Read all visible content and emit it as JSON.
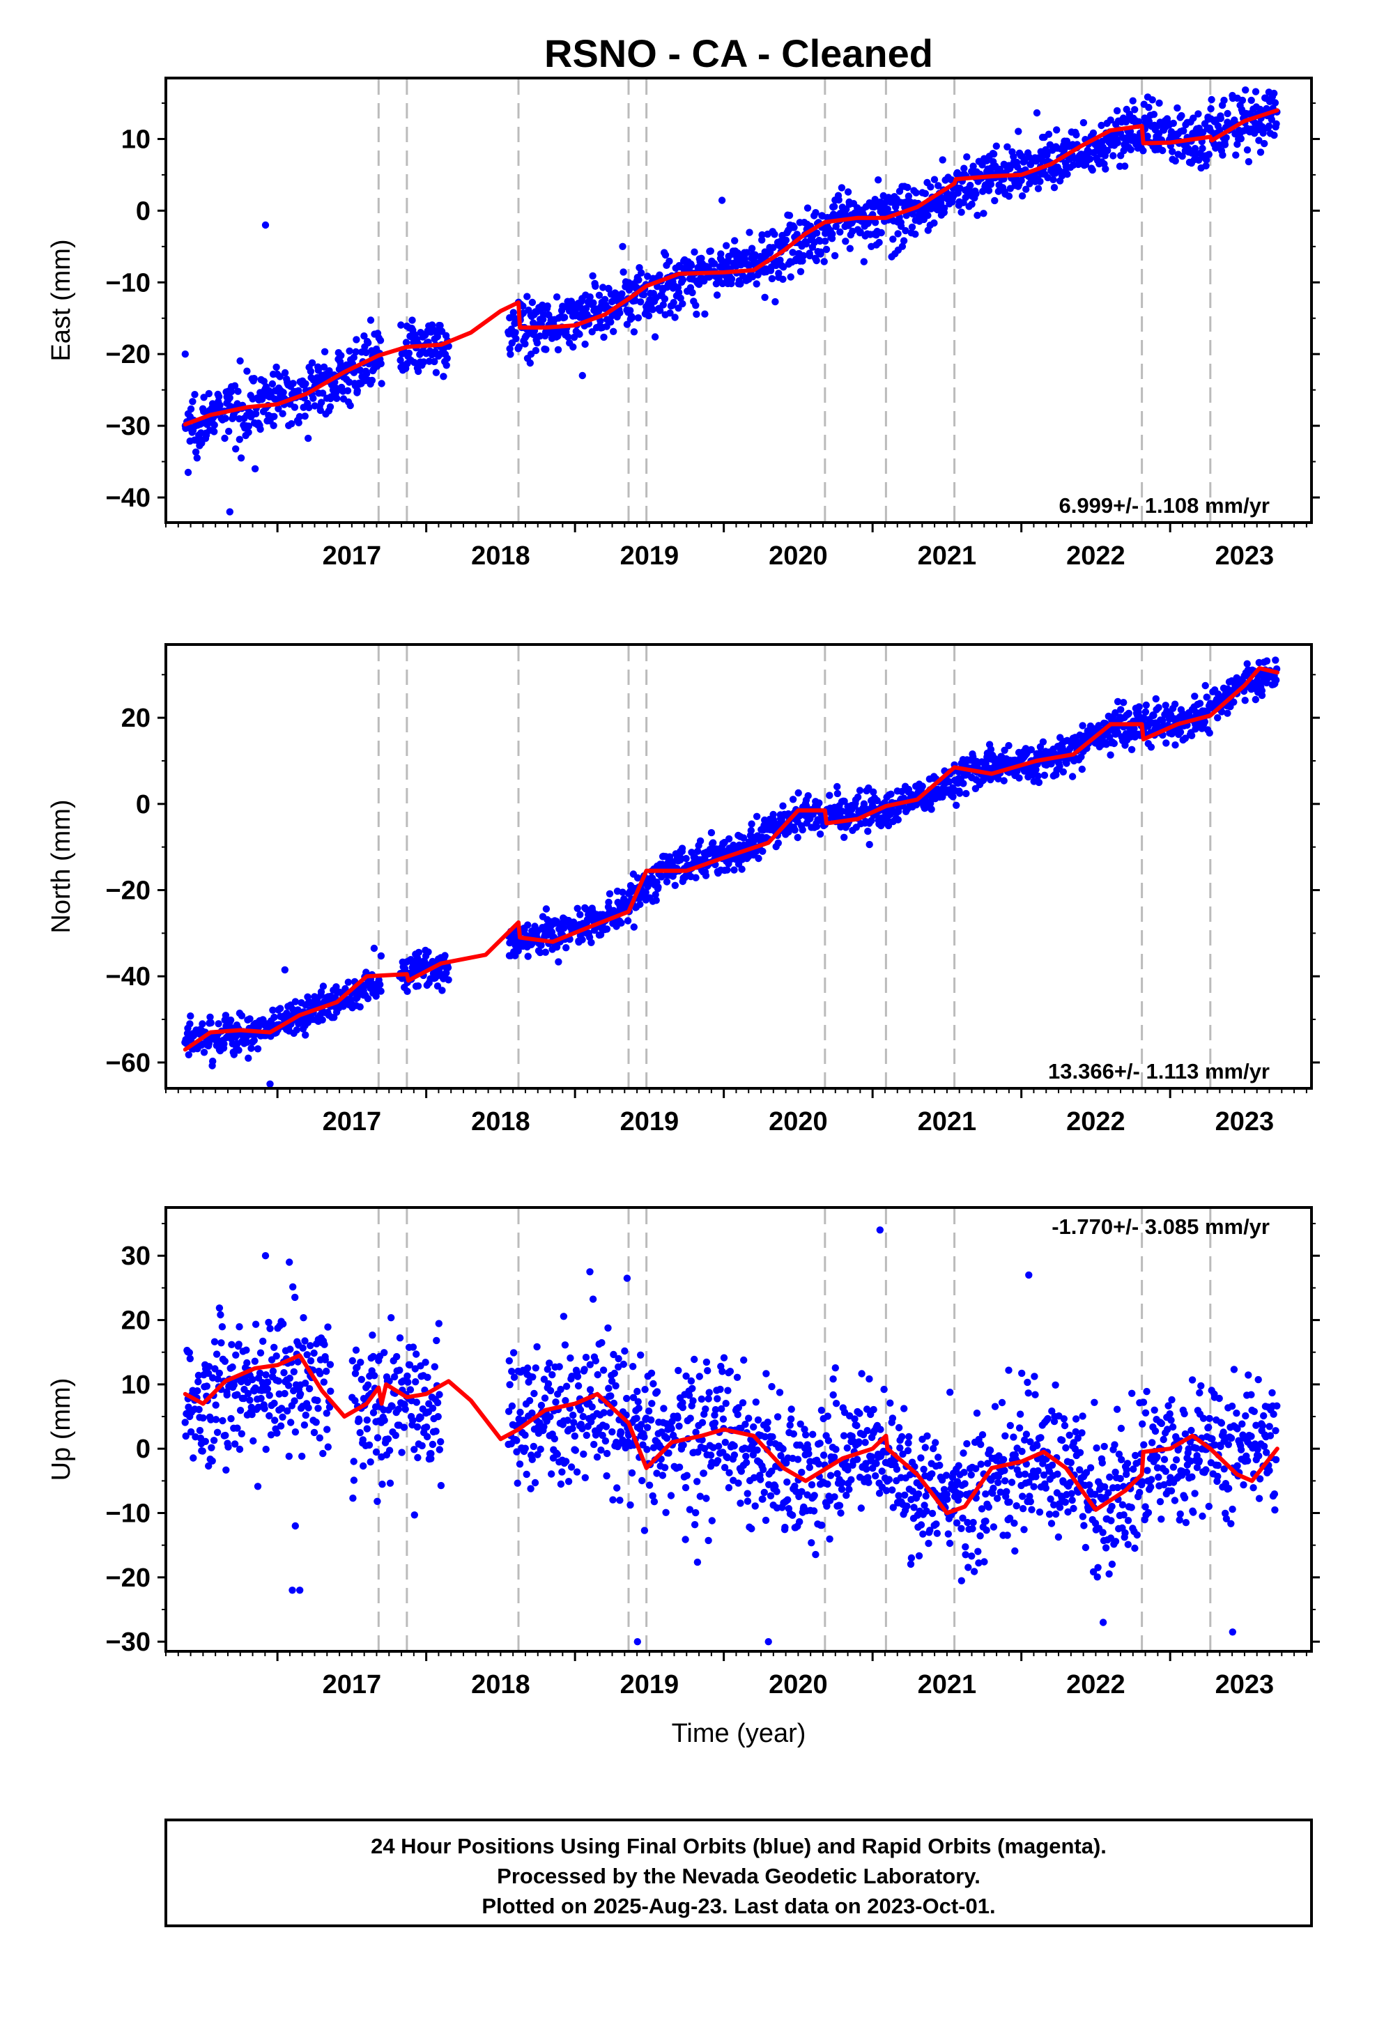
{
  "title": "RSNO  - CA - Cleaned",
  "footer": {
    "lines": [
      "24 Hour Positions Using Final Orbits (blue) and Rapid Orbits (magenta).",
      "Processed by the Nevada Geodetic Laboratory.",
      "Plotted on 2025-Aug-23. Last data on 2023-Oct-01."
    ]
  },
  "colors": {
    "data_points": "#0000ff",
    "model_line": "#ff0000",
    "breaks": "#bbbbbb",
    "axes": "#000000"
  },
  "chart_data": [
    {
      "type": "scatter",
      "id": "east",
      "ylabel": "East (mm)",
      "xlabel": "",
      "xlim": [
        2016.25,
        2023.95
      ],
      "ylim": [
        -43.5,
        18.5
      ],
      "x_ticks": [
        2017,
        2018,
        2019,
        2020,
        2021,
        2022,
        2023
      ],
      "y_ticks": [
        -40,
        -30,
        -20,
        -10,
        0,
        10
      ],
      "rate_label": "6.999+/- 1.108 mm/yr",
      "rate_label_position": "bottom-right",
      "break_epochs": [
        2017.68,
        2017.87,
        2018.62,
        2019.36,
        2019.48,
        2020.68,
        2021.09,
        2021.55,
        2022.81,
        2023.27
      ],
      "data_span": [
        2016.38,
        2023.72
      ],
      "model": [
        [
          2016.38,
          -29.8
        ],
        [
          2016.55,
          -28.5
        ],
        [
          2016.8,
          -27.4
        ],
        [
          2017.0,
          -27.0
        ],
        [
          2017.2,
          -25.5
        ],
        [
          2017.45,
          -22.5
        ],
        [
          2017.68,
          -20.2
        ],
        [
          2017.87,
          -19.0
        ],
        [
          2018.1,
          -18.7
        ],
        [
          2018.3,
          -17.0
        ],
        [
          2018.5,
          -14.0
        ],
        [
          2018.62,
          -12.8
        ],
        [
          2018.63,
          -16.3
        ],
        [
          2018.8,
          -16.3
        ],
        [
          2019.0,
          -16.0
        ],
        [
          2019.2,
          -14.5
        ],
        [
          2019.36,
          -12.3
        ],
        [
          2019.48,
          -10.5
        ],
        [
          2019.7,
          -8.8
        ],
        [
          2020.0,
          -8.6
        ],
        [
          2020.2,
          -8.3
        ],
        [
          2020.4,
          -5.6
        ],
        [
          2020.55,
          -3.2
        ],
        [
          2020.68,
          -1.6
        ],
        [
          2020.9,
          -1.0
        ],
        [
          2021.09,
          -1.0
        ],
        [
          2021.3,
          0.5
        ],
        [
          2021.55,
          3.8
        ],
        [
          2021.56,
          4.4
        ],
        [
          2021.8,
          4.8
        ],
        [
          2022.0,
          5.0
        ],
        [
          2022.2,
          6.5
        ],
        [
          2022.4,
          9.0
        ],
        [
          2022.6,
          11.2
        ],
        [
          2022.81,
          11.8
        ],
        [
          2022.82,
          9.4
        ],
        [
          2023.0,
          9.5
        ],
        [
          2023.27,
          10.3
        ],
        [
          2023.28,
          9.8
        ],
        [
          2023.5,
          12.5
        ],
        [
          2023.72,
          14.0
        ]
      ],
      "trend_points": [
        [
          2016.38,
          -30.0
        ],
        [
          2016.8,
          -27.2
        ],
        [
          2017.3,
          -24.5
        ],
        [
          2017.8,
          -19.5
        ],
        [
          2018.3,
          -17.5
        ],
        [
          2018.8,
          -16.0
        ],
        [
          2019.3,
          -13.0
        ],
        [
          2019.8,
          -8.7
        ],
        [
          2020.3,
          -7.0
        ],
        [
          2020.8,
          -1.3
        ],
        [
          2021.3,
          0.5
        ],
        [
          2021.8,
          4.8
        ],
        [
          2022.3,
          7.5
        ],
        [
          2022.8,
          11.5
        ],
        [
          2023.2,
          10.0
        ],
        [
          2023.72,
          14.0
        ]
      ],
      "scatter_sd": 2.0,
      "gaps": [
        [
          2017.7,
          2017.82
        ],
        [
          2018.15,
          2018.55
        ]
      ],
      "outliers": [
        [
          2016.92,
          -2.0
        ],
        [
          2016.68,
          -42.0
        ],
        [
          2016.85,
          -36.0
        ],
        [
          2016.4,
          -36.5
        ],
        [
          2016.38,
          -20.0
        ],
        [
          2019.32,
          -5.0
        ],
        [
          2019.05,
          -23.0
        ]
      ]
    },
    {
      "type": "scatter",
      "id": "north",
      "ylabel": "North (mm)",
      "xlabel": "",
      "xlim": [
        2016.25,
        2023.95
      ],
      "ylim": [
        -66,
        37
      ],
      "x_ticks": [
        2017,
        2018,
        2019,
        2020,
        2021,
        2022,
        2023
      ],
      "y_ticks": [
        -60,
        -40,
        -20,
        0,
        20
      ],
      "rate_label": "13.366+/- 1.113 mm/yr",
      "rate_label_position": "bottom-right",
      "break_epochs": [
        2017.68,
        2017.87,
        2018.62,
        2019.36,
        2019.48,
        2020.68,
        2021.09,
        2021.55,
        2022.81,
        2023.27
      ],
      "data_span": [
        2016.38,
        2023.72
      ],
      "model": [
        [
          2016.38,
          -57.0
        ],
        [
          2016.55,
          -53.0
        ],
        [
          2016.75,
          -52.5
        ],
        [
          2016.95,
          -53.0
        ],
        [
          2017.15,
          -49.0
        ],
        [
          2017.4,
          -46.0
        ],
        [
          2017.6,
          -40.0
        ],
        [
          2017.87,
          -39.5
        ],
        [
          2017.88,
          -41.0
        ],
        [
          2018.1,
          -37.0
        ],
        [
          2018.4,
          -35.0
        ],
        [
          2018.62,
          -27.5
        ],
        [
          2018.63,
          -31.0
        ],
        [
          2018.85,
          -32.0
        ],
        [
          2019.1,
          -28.5
        ],
        [
          2019.36,
          -25.0
        ],
        [
          2019.48,
          -15.5
        ],
        [
          2019.75,
          -15.5
        ],
        [
          2020.0,
          -12.5
        ],
        [
          2020.3,
          -9.0
        ],
        [
          2020.5,
          -1.5
        ],
        [
          2020.68,
          -1.5
        ],
        [
          2020.69,
          -4.5
        ],
        [
          2020.9,
          -3.5
        ],
        [
          2021.09,
          -0.5
        ],
        [
          2021.3,
          1.0
        ],
        [
          2021.55,
          8.5
        ],
        [
          2021.8,
          7.0
        ],
        [
          2022.1,
          10.0
        ],
        [
          2022.35,
          11.5
        ],
        [
          2022.6,
          18.5
        ],
        [
          2022.81,
          18.5
        ],
        [
          2022.82,
          15.0
        ],
        [
          2023.05,
          18.5
        ],
        [
          2023.27,
          20.5
        ],
        [
          2023.5,
          27.5
        ],
        [
          2023.6,
          31.5
        ],
        [
          2023.72,
          30.5
        ]
      ],
      "trend_points": [
        [
          2016.38,
          -55.0
        ],
        [
          2016.9,
          -52.5
        ],
        [
          2017.4,
          -46.0
        ],
        [
          2017.8,
          -39.5
        ],
        [
          2018.3,
          -36.0
        ],
        [
          2018.7,
          -31.0
        ],
        [
          2019.2,
          -27.5
        ],
        [
          2019.6,
          -15.5
        ],
        [
          2020.1,
          -11.0
        ],
        [
          2020.55,
          -1.5
        ],
        [
          2020.9,
          -3.0
        ],
        [
          2021.3,
          1.0
        ],
        [
          2021.7,
          8.0
        ],
        [
          2022.2,
          10.5
        ],
        [
          2022.7,
          18.5
        ],
        [
          2023.1,
          18.5
        ],
        [
          2023.5,
          28.0
        ],
        [
          2023.72,
          31.0
        ]
      ],
      "scatter_sd": 2.2,
      "gaps": [
        [
          2017.7,
          2017.82
        ],
        [
          2018.15,
          2018.55
        ]
      ],
      "outliers": [
        [
          2016.95,
          -65.0
        ],
        [
          2017.05,
          -38.5
        ],
        [
          2017.65,
          -33.5
        ]
      ]
    },
    {
      "type": "scatter",
      "id": "up",
      "ylabel": "Up (mm)",
      "xlabel": "Time (year)",
      "xlim": [
        2016.25,
        2023.95
      ],
      "ylim": [
        -31.5,
        37.5
      ],
      "x_ticks": [
        2017,
        2018,
        2019,
        2020,
        2021,
        2022,
        2023
      ],
      "y_ticks": [
        -30,
        -20,
        -10,
        0,
        10,
        20,
        30
      ],
      "rate_label": "-1.770+/- 3.085 mm/yr",
      "rate_label_position": "top-right",
      "break_epochs": [
        2017.68,
        2017.87,
        2018.62,
        2019.36,
        2019.48,
        2020.68,
        2021.09,
        2021.55,
        2022.81,
        2023.27
      ],
      "data_span": [
        2016.38,
        2023.72
      ],
      "model": [
        [
          2016.38,
          8.5
        ],
        [
          2016.5,
          7.0
        ],
        [
          2016.65,
          10.5
        ],
        [
          2016.85,
          12.5
        ],
        [
          2017.0,
          13.0
        ],
        [
          2017.15,
          14.5
        ],
        [
          2017.3,
          9.0
        ],
        [
          2017.45,
          5.0
        ],
        [
          2017.6,
          7.0
        ],
        [
          2017.68,
          9.5
        ],
        [
          2017.7,
          7.0
        ],
        [
          2017.73,
          10.0
        ],
        [
          2017.87,
          8.0
        ],
        [
          2018.0,
          8.5
        ],
        [
          2018.15,
          10.5
        ],
        [
          2018.3,
          7.5
        ],
        [
          2018.5,
          1.5
        ],
        [
          2018.62,
          3.0
        ],
        [
          2018.8,
          6.0
        ],
        [
          2019.0,
          7.0
        ],
        [
          2019.15,
          8.5
        ],
        [
          2019.36,
          4.0
        ],
        [
          2019.48,
          -3.0
        ],
        [
          2019.65,
          1.0
        ],
        [
          2019.85,
          2.0
        ],
        [
          2020.0,
          3.0
        ],
        [
          2020.2,
          2.0
        ],
        [
          2020.4,
          -3.0
        ],
        [
          2020.55,
          -5.0
        ],
        [
          2020.8,
          -1.5
        ],
        [
          2021.0,
          0.0
        ],
        [
          2021.09,
          2.0
        ],
        [
          2021.1,
          0.0
        ],
        [
          2021.3,
          -4.0
        ],
        [
          2021.5,
          -10.0
        ],
        [
          2021.62,
          -9.0
        ],
        [
          2021.8,
          -3.0
        ],
        [
          2022.0,
          -2.0
        ],
        [
          2022.15,
          -0.5
        ],
        [
          2022.3,
          -3.0
        ],
        [
          2022.5,
          -9.5
        ],
        [
          2022.7,
          -6.5
        ],
        [
          2022.81,
          -4.0
        ],
        [
          2022.82,
          -0.5
        ],
        [
          2023.0,
          0.0
        ],
        [
          2023.15,
          2.0
        ],
        [
          2023.27,
          0.0
        ],
        [
          2023.45,
          -4.0
        ],
        [
          2023.55,
          -5.0
        ],
        [
          2023.72,
          0.0
        ]
      ],
      "trend_points": [
        [
          2016.38,
          7.5
        ],
        [
          2016.9,
          10.0
        ],
        [
          2017.2,
          11.0
        ],
        [
          2017.5,
          6.0
        ],
        [
          2017.9,
          8.0
        ],
        [
          2018.7,
          4.5
        ],
        [
          2019.2,
          5.5
        ],
        [
          2019.6,
          0.5
        ],
        [
          2020.0,
          2.0
        ],
        [
          2020.5,
          -4.0
        ],
        [
          2021.0,
          0.0
        ],
        [
          2021.5,
          -9.5
        ],
        [
          2022.1,
          -1.0
        ],
        [
          2022.5,
          -8.0
        ],
        [
          2022.9,
          -1.5
        ],
        [
          2023.3,
          -1.0
        ],
        [
          2023.72,
          1.5
        ]
      ],
      "scatter_sd": 5.5,
      "gaps": [
        [
          2017.36,
          2017.5
        ],
        [
          2018.1,
          2018.55
        ]
      ],
      "outliers": [
        [
          2016.92,
          30.0
        ],
        [
          2017.08,
          29.0
        ],
        [
          2017.1,
          -22.0
        ],
        [
          2017.15,
          -22.0
        ],
        [
          2021.05,
          34.0
        ],
        [
          2022.05,
          27.0
        ],
        [
          2019.1,
          27.5
        ],
        [
          2019.35,
          26.5
        ],
        [
          2019.42,
          -30.0
        ],
        [
          2020.3,
          -30.0
        ],
        [
          2023.42,
          -28.5
        ],
        [
          2022.55,
          -27.0
        ],
        [
          2017.12,
          -12.0
        ]
      ]
    }
  ]
}
